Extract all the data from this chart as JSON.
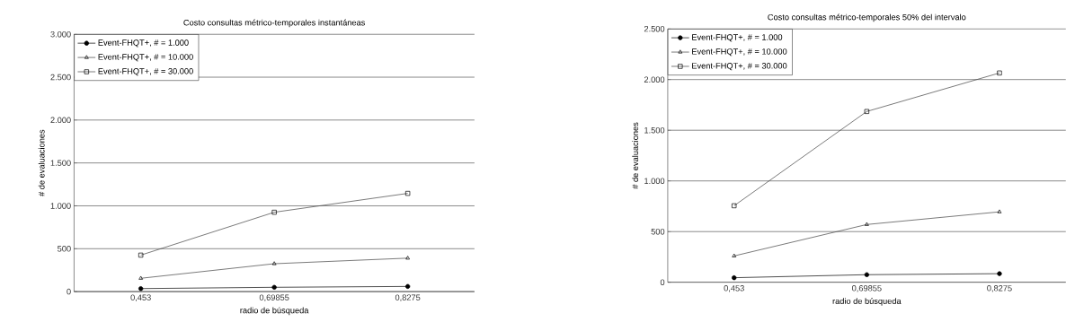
{
  "chart_data": [
    {
      "type": "line",
      "title": "Costo consultas métrico-temporales instantáneas",
      "xlabel": "radio de búsqueda",
      "ylabel": "# de evaluaciones",
      "categories": [
        "0,453",
        "0,69855",
        "0,8275"
      ],
      "series": [
        {
          "name": "Event-FHQT+, # = 1.000",
          "color": "#000000",
          "marker": "circle",
          "values": [
            35,
            50,
            60
          ]
        },
        {
          "name": "Event-FHQT+, # = 10.000",
          "color": "#404040",
          "marker": "triangle",
          "values": [
            155,
            325,
            390
          ]
        },
        {
          "name": "Event-FHQT+, # = 30.000",
          "color": "#404040",
          "marker": "square",
          "values": [
            425,
            925,
            1145
          ]
        }
      ],
      "ylim": [
        0,
        3000
      ],
      "yticks": [
        {
          "value": 0,
          "label": "0"
        },
        {
          "value": 500,
          "label": "500"
        },
        {
          "value": 1000,
          "label": "1.000"
        },
        {
          "value": 1500,
          "label": "1.500"
        },
        {
          "value": 2000,
          "label": "2.000"
        },
        {
          "value": 2500,
          "label": "2.500"
        },
        {
          "value": 3000,
          "label": "3.000"
        }
      ],
      "grid": "y",
      "legend": "top left"
    },
    {
      "type": "line",
      "title": "Costo consultas métrico-temporales 50% del intervalo",
      "xlabel": "radio de búsqueda",
      "ylabel": "# de evaluaciones",
      "categories": [
        "0,453",
        "0,69855",
        "0,8275"
      ],
      "series": [
        {
          "name": "Event-FHQT+, # = 1.000",
          "color": "#000000",
          "marker": "circle",
          "values": [
            45,
            75,
            85
          ]
        },
        {
          "name": "Event-FHQT+, # = 10.000",
          "color": "#404040",
          "marker": "triangle",
          "values": [
            260,
            570,
            695
          ]
        },
        {
          "name": "Event-FHQT+, # = 30.000",
          "color": "#404040",
          "marker": "square",
          "values": [
            755,
            1685,
            2065
          ]
        }
      ],
      "ylim": [
        0,
        2500
      ],
      "yticks": [
        {
          "value": 0,
          "label": "0"
        },
        {
          "value": 500,
          "label": "500"
        },
        {
          "value": 1000,
          "label": "1.000"
        },
        {
          "value": 1500,
          "label": "1.500"
        },
        {
          "value": 2000,
          "label": "2.000"
        },
        {
          "value": 2500,
          "label": "2.500"
        }
      ],
      "grid": "y",
      "legend": "top left"
    }
  ]
}
